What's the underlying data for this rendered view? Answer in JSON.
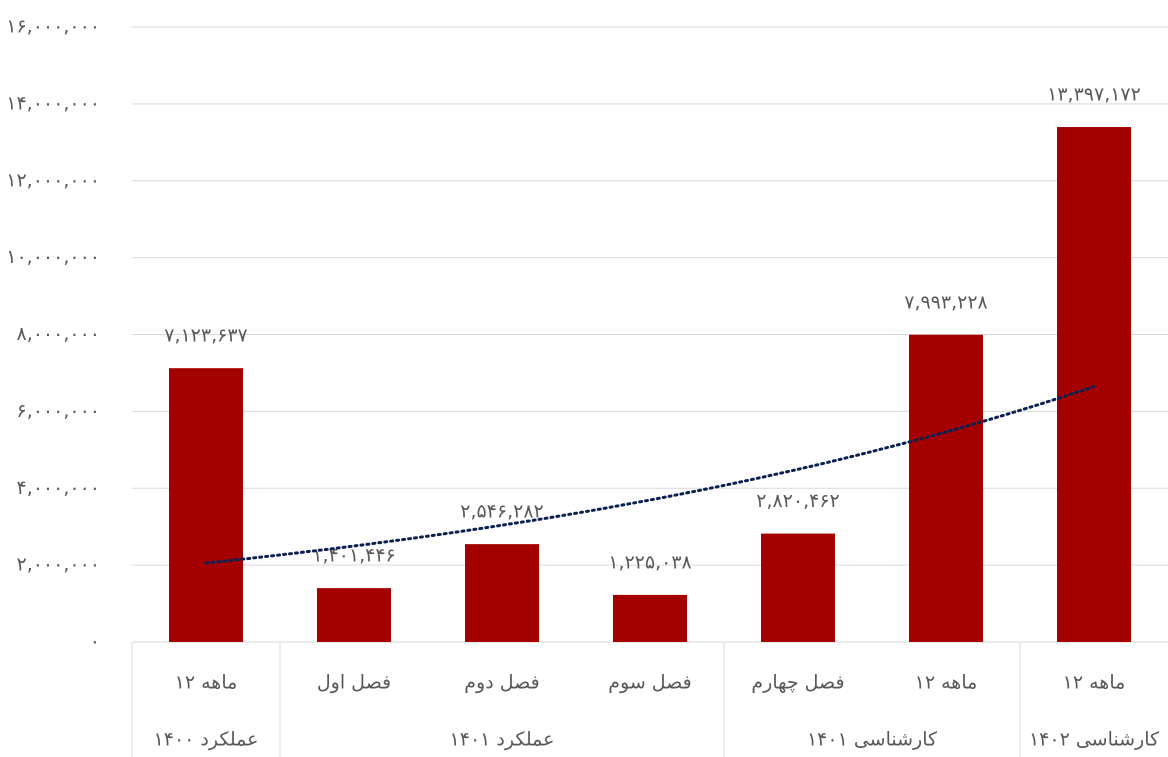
{
  "chart_data": {
    "type": "bar",
    "categories": [
      "۱۲ ماهه",
      "فصل اول",
      "فصل دوم",
      "فصل سوم",
      "فصل چهارم",
      "۱۲ ماهه",
      "۱۲ ماهه"
    ],
    "group_categories": [
      "عملکرد ۱۴۰۰",
      "عملکرد ۱۴۰۱",
      null,
      null,
      "کارشناسی ۱۴۰۱",
      null,
      "کارشناسی ۱۴۰۲"
    ],
    "values": [
      7123637,
      1401446,
      2546282,
      1225038,
      2820462,
      7993228,
      13397172
    ],
    "value_labels": [
      "۷,۱۲۳,۶۳۷",
      "۱,۴۰۱,۴۴۶",
      "۲,۵۴۶,۲۸۲",
      "۱,۲۲۵,۰۳۸",
      "۲,۸۲۰,۴۶۲",
      "۷,۹۹۳,۲۲۸",
      "۱۳,۳۹۷,۱۷۲"
    ],
    "color": "#a50000",
    "ylim": [
      0,
      16000000
    ],
    "yticks": [
      {
        "value": 0,
        "label": "۰"
      },
      {
        "value": 2000000,
        "label": "۲,۰۰۰,۰۰۰"
      },
      {
        "value": 4000000,
        "label": "۴,۰۰۰,۰۰۰"
      },
      {
        "value": 6000000,
        "label": "۶,۰۰۰,۰۰۰"
      },
      {
        "value": 8000000,
        "label": "۸,۰۰۰,۰۰۰"
      },
      {
        "value": 10000000,
        "label": "۱۰,۰۰۰,۰۰۰"
      },
      {
        "value": 12000000,
        "label": "۱۲,۰۰۰,۰۰۰"
      },
      {
        "value": 14000000,
        "label": "۱۴,۰۰۰,۰۰۰"
      },
      {
        "value": 16000000,
        "label": "۱۶,۰۰۰,۰۰۰"
      }
    ],
    "grid": true,
    "trendline": "exponential",
    "trendline_color": "#0d2150"
  }
}
